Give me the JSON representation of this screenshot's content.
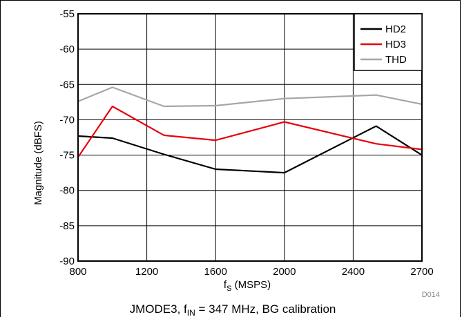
{
  "chart_data": {
    "type": "line",
    "title": "",
    "xlabel_main": "f",
    "xlabel_sub": "S",
    "xlabel_rest": " (MSPS)",
    "ylabel": "Magnitude (dBFS)",
    "x_ticks": [
      800,
      1200,
      1600,
      2000,
      2400,
      2700
    ],
    "x_tick_labels": [
      "800",
      "1200",
      "1600",
      "2000",
      "2400",
      "2700"
    ],
    "y_ticks": [
      -55,
      -60,
      -65,
      -70,
      -75,
      -80,
      -85,
      -90
    ],
    "y_tick_labels": [
      "-55",
      "-60",
      "-65",
      "-70",
      "-75",
      "-80",
      "-85",
      "-90"
    ],
    "ylim": [
      -90,
      -55
    ],
    "grid": true,
    "legend_position": "top-right",
    "series": [
      {
        "name": "HD2",
        "color": "#000000",
        "points": [
          [
            800,
            -72.3
          ],
          [
            1000,
            -72.6
          ],
          [
            1300,
            -74.9
          ],
          [
            1600,
            -77.0
          ],
          [
            2000,
            -77.5
          ],
          [
            2500,
            -70.9
          ],
          [
            2700,
            -75.0
          ]
        ]
      },
      {
        "name": "HD3",
        "color": "#e8000b",
        "points": [
          [
            800,
            -75.3
          ],
          [
            1000,
            -68.1
          ],
          [
            1300,
            -72.2
          ],
          [
            1600,
            -72.9
          ],
          [
            2000,
            -70.3
          ],
          [
            2500,
            -73.4
          ],
          [
            2700,
            -74.2
          ]
        ]
      },
      {
        "name": "THD",
        "color": "#a6a6a6",
        "points": [
          [
            800,
            -67.4
          ],
          [
            1000,
            -65.4
          ],
          [
            1300,
            -68.1
          ],
          [
            1600,
            -68.0
          ],
          [
            2000,
            -67.0
          ],
          [
            2500,
            -66.5
          ],
          [
            2700,
            -67.8
          ]
        ]
      }
    ],
    "code_label": "D014",
    "caption_pre": "JMODE3, f",
    "caption_sub": "IN",
    "caption_post": " = 347 MHz, BG calibration"
  }
}
